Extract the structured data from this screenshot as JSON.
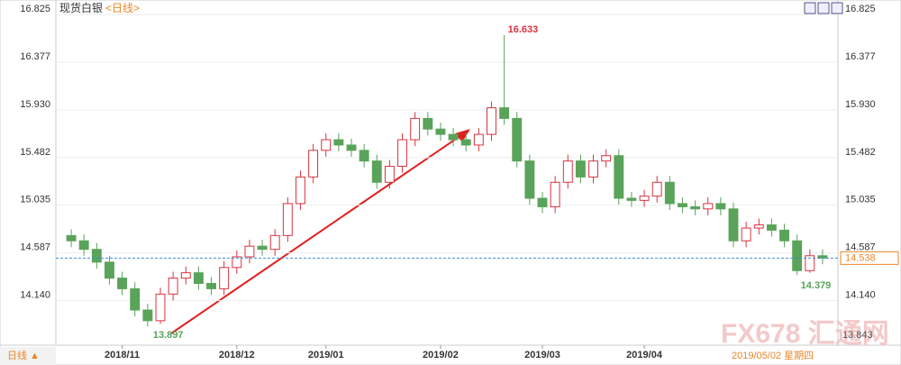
{
  "chart_data": {
    "type": "candlestick",
    "title": "现货白银",
    "subtitle": "<日线>",
    "period_button": "日线 ▲",
    "watermark": "FX678 汇通网",
    "date_readout": "2019/05/02 星期四",
    "cursor_value": "13.843",
    "annotations": [
      "16.633",
      "13.897",
      "14.379"
    ],
    "last_value": 14.538,
    "up_color": "#d9333f",
    "down_color": "#5aa35a",
    "ylim": [
      13.72,
      16.92
    ],
    "yticks": [
      {
        "value": 16.825,
        "label": "16.825"
      },
      {
        "value": 16.377,
        "label": "16.377"
      },
      {
        "value": 15.93,
        "label": "15.930"
      },
      {
        "value": 15.482,
        "label": "15.482"
      },
      {
        "value": 15.035,
        "label": "15.035"
      },
      {
        "value": 14.587,
        "label": "14.587"
      },
      {
        "value": 14.14,
        "label": "14.140"
      }
    ],
    "categories": [
      null,
      null,
      null,
      null,
      "2018/11",
      null,
      null,
      null,
      null,
      null,
      null,
      null,
      null,
      "2018/12",
      null,
      null,
      null,
      null,
      null,
      null,
      "2019/01",
      null,
      null,
      null,
      null,
      null,
      null,
      null,
      null,
      "2019/02",
      null,
      null,
      null,
      null,
      null,
      null,
      null,
      "2019/03",
      null,
      null,
      null,
      null,
      null,
      null,
      null,
      "2019/04",
      null,
      null,
      null,
      null,
      null,
      null,
      null,
      null,
      null,
      null,
      null,
      null,
      null,
      null
    ],
    "open": [
      14.75,
      14.7,
      14.62,
      14.5,
      14.35,
      14.25,
      14.05,
      13.95,
      14.2,
      14.35,
      14.4,
      14.3,
      14.25,
      14.45,
      14.55,
      14.65,
      14.62,
      14.75,
      15.05,
      15.3,
      15.55,
      15.65,
      15.6,
      15.55,
      15.45,
      15.25,
      15.4,
      15.65,
      15.85,
      15.75,
      15.7,
      15.65,
      15.6,
      15.7,
      15.95,
      15.85,
      15.45,
      15.1,
      15.02,
      15.25,
      15.45,
      15.3,
      15.45,
      15.5,
      15.1,
      15.08,
      15.12,
      15.25,
      15.05,
      15.02,
      15.0,
      15.05,
      15.0,
      14.7,
      14.82,
      14.85,
      14.8,
      14.7,
      14.42,
      14.56
    ],
    "high": [
      14.81,
      14.76,
      14.68,
      14.56,
      14.41,
      14.31,
      14.11,
      14.26,
      14.41,
      14.46,
      14.46,
      14.36,
      14.51,
      14.61,
      14.71,
      14.71,
      14.81,
      15.11,
      15.36,
      15.61,
      15.71,
      15.71,
      15.66,
      15.61,
      15.51,
      15.46,
      15.71,
      15.91,
      15.91,
      15.81,
      15.76,
      15.71,
      15.76,
      16.01,
      16.633,
      15.91,
      15.51,
      15.16,
      15.31,
      15.51,
      15.51,
      15.51,
      15.56,
      15.56,
      15.16,
      15.18,
      15.31,
      15.31,
      15.11,
      15.08,
      15.11,
      15.11,
      15.06,
      14.88,
      14.91,
      14.91,
      14.86,
      14.76,
      14.62,
      14.62
    ],
    "low": [
      14.64,
      14.56,
      14.44,
      14.29,
      14.19,
      13.99,
      13.897,
      13.92,
      14.14,
      14.29,
      14.24,
      14.19,
      14.19,
      14.39,
      14.49,
      14.56,
      14.56,
      14.69,
      14.99,
      15.24,
      15.49,
      15.54,
      15.49,
      15.39,
      15.19,
      15.19,
      15.34,
      15.59,
      15.69,
      15.64,
      15.59,
      15.54,
      15.54,
      15.64,
      15.79,
      15.39,
      15.04,
      14.96,
      14.96,
      15.19,
      15.24,
      15.24,
      15.39,
      15.04,
      15.02,
      15.02,
      15.06,
      14.99,
      14.96,
      14.94,
      14.94,
      14.94,
      14.64,
      14.64,
      14.76,
      14.74,
      14.64,
      14.379,
      14.4,
      14.48
    ],
    "close": [
      14.7,
      14.62,
      14.5,
      14.35,
      14.25,
      14.05,
      13.95,
      14.2,
      14.35,
      14.4,
      14.3,
      14.25,
      14.45,
      14.55,
      14.65,
      14.62,
      14.75,
      15.05,
      15.3,
      15.55,
      15.65,
      15.6,
      15.55,
      15.45,
      15.25,
      15.4,
      15.65,
      15.85,
      15.75,
      15.7,
      15.65,
      15.6,
      15.7,
      15.95,
      15.85,
      15.45,
      15.1,
      15.02,
      15.25,
      15.45,
      15.3,
      15.45,
      15.5,
      15.1,
      15.08,
      15.12,
      15.25,
      15.05,
      15.02,
      15.0,
      15.05,
      15.0,
      14.7,
      14.82,
      14.85,
      14.8,
      14.7,
      14.42,
      14.56,
      14.538
    ]
  }
}
